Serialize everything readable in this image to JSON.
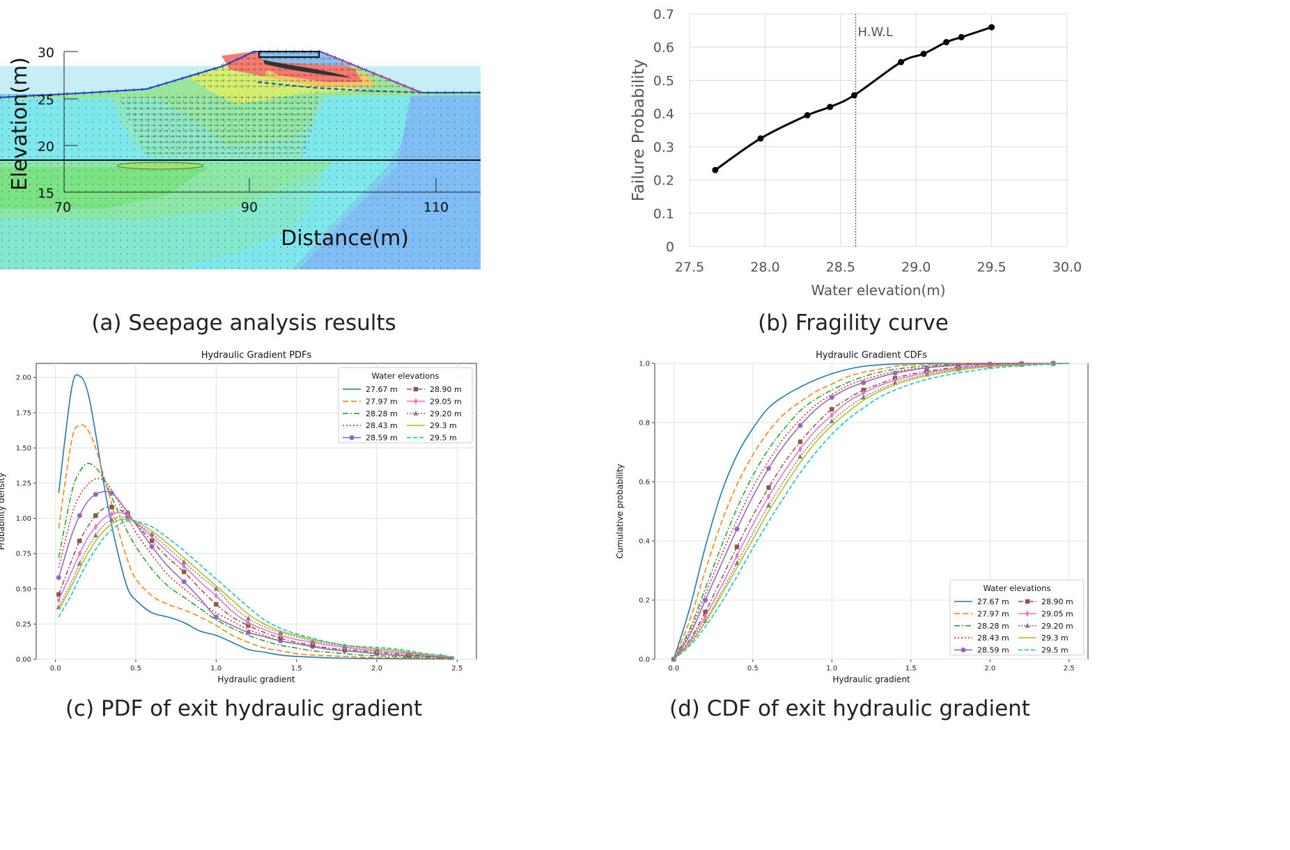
{
  "captions": {
    "a": "(a) Seepage analysis results",
    "b": "(b) Fragility curve",
    "c": "(c) PDF of exit hydraulic gradient",
    "d": "(d) CDF of exit hydraulic gradient"
  },
  "seepage": {
    "ylabel": "Elevation(m)",
    "xlabel": "Distance(m)",
    "yticks": [
      "30",
      "25",
      "20",
      "15"
    ],
    "xticks": [
      "70",
      "90",
      "110"
    ]
  },
  "series_names": [
    "27.67 m",
    "27.97 m",
    "28.28 m",
    "28.43 m",
    "28.59 m",
    "28.90 m",
    "29.05 m",
    "29.20 m",
    "29.3 m",
    "29.5 m"
  ],
  "series_colors": [
    "#1f77b4",
    "#ff7f0e",
    "#2ca02c",
    "#d62728",
    "#9467bd",
    "#8c564b",
    "#e377c2",
    "#7f7f7f",
    "#bcbd22",
    "#17becf"
  ],
  "chart_data": [
    {
      "type": "line",
      "title": "",
      "xlabel": "Water elevation(m)",
      "ylabel": "Failure Probability",
      "xlim": [
        27.5,
        30.0
      ],
      "ylim": [
        0,
        0.7
      ],
      "xticks": [
        "27.5",
        "28.0",
        "28.5",
        "29.0",
        "29.5",
        "30.0"
      ],
      "yticks": [
        "0",
        "0.1",
        "0.2",
        "0.3",
        "0.4",
        "0.5",
        "0.6",
        "0.7"
      ],
      "annotation": {
        "text": "H.W.L",
        "x": 28.6
      },
      "x": [
        27.67,
        27.97,
        28.28,
        28.43,
        28.59,
        28.9,
        29.05,
        29.2,
        29.3,
        29.5
      ],
      "y": [
        0.23,
        0.325,
        0.395,
        0.42,
        0.455,
        0.555,
        0.58,
        0.615,
        0.63,
        0.66
      ],
      "grid": true
    },
    {
      "type": "line",
      "title": "Hydraulic Gradient PDFs",
      "xlabel": "Hydraulic gradient",
      "ylabel": "Probability density",
      "xlim": [
        -0.12,
        2.62
      ],
      "ylim": [
        0,
        2.1
      ],
      "xticks": [
        "0.0",
        "0.5",
        "1.0",
        "1.5",
        "2.0",
        "2.5"
      ],
      "yticks": [
        "0.00",
        "0.25",
        "0.50",
        "0.75",
        "1.00",
        "1.25",
        "1.50",
        "1.75",
        "2.00"
      ],
      "legend_title": "Water elevations",
      "legend_position": "top-right",
      "grid": true,
      "x": [
        0.02,
        0.1,
        0.15,
        0.2,
        0.25,
        0.3,
        0.35,
        0.4,
        0.45,
        0.5,
        0.6,
        0.7,
        0.8,
        0.9,
        1.0,
        1.1,
        1.2,
        1.3,
        1.4,
        1.5,
        1.6,
        1.7,
        1.8,
        1.9,
        2.0,
        2.1,
        2.2,
        2.3,
        2.4,
        2.48
      ],
      "series": [
        {
          "name": "27.67 m",
          "values": [
            1.18,
            1.92,
            2.01,
            1.9,
            1.6,
            1.25,
            0.95,
            0.7,
            0.5,
            0.42,
            0.33,
            0.3,
            0.26,
            0.2,
            0.17,
            0.12,
            0.07,
            0.05,
            0.03,
            0.02,
            0.015,
            0.01,
            0.008,
            0.006,
            0.005,
            0.004,
            0.003,
            0.002,
            0.002,
            0.001
          ]
        },
        {
          "name": "27.97 m",
          "values": [
            0.93,
            1.55,
            1.66,
            1.63,
            1.5,
            1.3,
            1.1,
            0.88,
            0.7,
            0.57,
            0.45,
            0.39,
            0.35,
            0.3,
            0.24,
            0.17,
            0.12,
            0.08,
            0.06,
            0.04,
            0.03,
            0.025,
            0.02,
            0.015,
            0.012,
            0.01,
            0.008,
            0.006,
            0.004,
            0.003
          ]
        },
        {
          "name": "28.28 m",
          "values": [
            0.72,
            1.18,
            1.33,
            1.39,
            1.36,
            1.28,
            1.15,
            1.02,
            0.9,
            0.8,
            0.64,
            0.52,
            0.44,
            0.36,
            0.28,
            0.22,
            0.17,
            0.13,
            0.1,
            0.08,
            0.06,
            0.05,
            0.04,
            0.03,
            0.025,
            0.02,
            0.015,
            0.01,
            0.007,
            0.005
          ]
        },
        {
          "name": "28.43 m",
          "values": [
            0.65,
            1.02,
            1.16,
            1.24,
            1.28,
            1.27,
            1.2,
            1.1,
            1.0,
            0.9,
            0.74,
            0.6,
            0.5,
            0.41,
            0.33,
            0.27,
            0.21,
            0.17,
            0.13,
            0.11,
            0.09,
            0.07,
            0.06,
            0.05,
            0.04,
            0.03,
            0.025,
            0.02,
            0.015,
            0.01
          ]
        },
        {
          "name": "28.59 m",
          "values": [
            0.58,
            0.88,
            1.02,
            1.12,
            1.17,
            1.19,
            1.18,
            1.12,
            1.04,
            0.96,
            0.8,
            0.66,
            0.55,
            0.43,
            0.3,
            0.24,
            0.19,
            0.16,
            0.13,
            0.11,
            0.09,
            0.07,
            0.06,
            0.05,
            0.04,
            0.03,
            0.025,
            0.02,
            0.015,
            0.01
          ]
        },
        {
          "name": "28.90 m",
          "values": [
            0.46,
            0.7,
            0.84,
            0.94,
            1.02,
            1.07,
            1.08,
            1.06,
            1.02,
            0.96,
            0.84,
            0.72,
            0.62,
            0.5,
            0.39,
            0.3,
            0.24,
            0.19,
            0.15,
            0.12,
            0.1,
            0.08,
            0.07,
            0.06,
            0.05,
            0.04,
            0.03,
            0.022,
            0.015,
            0.01
          ]
        },
        {
          "name": "29.05 m",
          "values": [
            0.42,
            0.62,
            0.75,
            0.86,
            0.94,
            1.0,
            1.03,
            1.04,
            1.02,
            0.97,
            0.87,
            0.76,
            0.66,
            0.55,
            0.45,
            0.34,
            0.26,
            0.21,
            0.17,
            0.14,
            0.12,
            0.1,
            0.085,
            0.07,
            0.06,
            0.05,
            0.04,
            0.03,
            0.02,
            0.012
          ]
        },
        {
          "name": "29.20 m",
          "values": [
            0.37,
            0.55,
            0.68,
            0.79,
            0.88,
            0.95,
            0.99,
            1.01,
            1.0,
            0.97,
            0.89,
            0.79,
            0.69,
            0.59,
            0.5,
            0.38,
            0.29,
            0.23,
            0.19,
            0.16,
            0.13,
            0.11,
            0.095,
            0.08,
            0.07,
            0.06,
            0.045,
            0.033,
            0.022,
            0.014
          ]
        },
        {
          "name": "29.3 m",
          "values": [
            0.35,
            0.52,
            0.64,
            0.75,
            0.84,
            0.91,
            0.96,
            0.99,
            0.99,
            0.98,
            0.91,
            0.82,
            0.72,
            0.62,
            0.52,
            0.42,
            0.32,
            0.25,
            0.2,
            0.17,
            0.14,
            0.12,
            0.1,
            0.085,
            0.075,
            0.065,
            0.05,
            0.036,
            0.024,
            0.015
          ]
        },
        {
          "name": "29.5 m",
          "values": [
            0.3,
            0.46,
            0.58,
            0.69,
            0.78,
            0.86,
            0.92,
            0.96,
            0.98,
            0.98,
            0.94,
            0.86,
            0.77,
            0.67,
            0.57,
            0.47,
            0.37,
            0.28,
            0.22,
            0.18,
            0.15,
            0.12,
            0.1,
            0.09,
            0.085,
            0.075,
            0.06,
            0.04,
            0.028,
            0.016
          ]
        }
      ]
    },
    {
      "type": "line",
      "title": "Hydraulic Gradient CDFs",
      "xlabel": "Hydraulic gradient",
      "ylabel": "Cumulative probability",
      "xlim": [
        -0.12,
        2.62
      ],
      "ylim": [
        0,
        1.0
      ],
      "xticks": [
        "0.0",
        "0.5",
        "1.0",
        "1.5",
        "2.0",
        "2.5"
      ],
      "yticks": [
        "0.0",
        "0.2",
        "0.4",
        "0.6",
        "0.8",
        "1.0"
      ],
      "legend_title": "Water elevations",
      "legend_position": "bottom-right",
      "grid": true,
      "x": [
        0.0,
        0.1,
        0.2,
        0.3,
        0.4,
        0.5,
        0.6,
        0.7,
        0.8,
        0.9,
        1.0,
        1.1,
        1.2,
        1.3,
        1.4,
        1.5,
        1.6,
        1.7,
        1.8,
        1.9,
        2.0,
        2.1,
        2.2,
        2.3,
        2.4,
        2.5
      ],
      "series": [
        {
          "name": "27.67 m",
          "values": [
            0.0,
            0.17,
            0.38,
            0.56,
            0.69,
            0.78,
            0.85,
            0.89,
            0.92,
            0.945,
            0.965,
            0.98,
            0.99,
            0.995,
            0.998,
            0.999,
            1.0,
            1.0,
            1.0,
            1.0,
            1.0,
            1.0,
            1.0,
            1.0,
            1.0,
            1.0
          ]
        },
        {
          "name": "27.97 m",
          "values": [
            0.0,
            0.13,
            0.3,
            0.46,
            0.59,
            0.69,
            0.77,
            0.83,
            0.87,
            0.905,
            0.93,
            0.955,
            0.97,
            0.98,
            0.99,
            0.995,
            0.997,
            0.998,
            0.999,
            1.0,
            1.0,
            1.0,
            1.0,
            1.0,
            1.0,
            1.0
          ]
        },
        {
          "name": "28.28 m",
          "values": [
            0.0,
            0.1,
            0.24,
            0.38,
            0.51,
            0.62,
            0.71,
            0.78,
            0.84,
            0.88,
            0.91,
            0.935,
            0.955,
            0.97,
            0.98,
            0.987,
            0.992,
            0.995,
            0.997,
            0.998,
            0.999,
            1.0,
            1.0,
            1.0,
            1.0,
            1.0
          ]
        },
        {
          "name": "28.43 m",
          "values": [
            0.0,
            0.09,
            0.22,
            0.35,
            0.47,
            0.58,
            0.67,
            0.75,
            0.81,
            0.86,
            0.895,
            0.925,
            0.945,
            0.96,
            0.972,
            0.98,
            0.987,
            0.992,
            0.995,
            0.997,
            0.998,
            0.999,
            1.0,
            1.0,
            1.0,
            1.0
          ]
        },
        {
          "name": "28.59 m",
          "values": [
            0.0,
            0.08,
            0.2,
            0.32,
            0.44,
            0.55,
            0.645,
            0.725,
            0.79,
            0.845,
            0.885,
            0.915,
            0.935,
            0.953,
            0.967,
            0.977,
            0.985,
            0.99,
            0.994,
            0.996,
            0.998,
            0.999,
            1.0,
            1.0,
            1.0,
            1.0
          ]
        },
        {
          "name": "28.90 m",
          "values": [
            0.0,
            0.065,
            0.16,
            0.27,
            0.38,
            0.485,
            0.58,
            0.665,
            0.735,
            0.795,
            0.845,
            0.88,
            0.91,
            0.93,
            0.95,
            0.963,
            0.973,
            0.981,
            0.987,
            0.991,
            0.994,
            0.996,
            0.998,
            0.999,
            1.0,
            1.0
          ]
        },
        {
          "name": "29.05 m",
          "values": [
            0.0,
            0.06,
            0.145,
            0.245,
            0.35,
            0.455,
            0.55,
            0.635,
            0.71,
            0.775,
            0.825,
            0.87,
            0.9,
            0.924,
            0.943,
            0.957,
            0.968,
            0.977,
            0.984,
            0.989,
            0.993,
            0.995,
            0.997,
            0.999,
            1.0,
            1.0
          ]
        },
        {
          "name": "29.20 m",
          "values": [
            0.0,
            0.055,
            0.13,
            0.225,
            0.325,
            0.425,
            0.52,
            0.605,
            0.685,
            0.75,
            0.805,
            0.85,
            0.885,
            0.912,
            0.934,
            0.95,
            0.962,
            0.972,
            0.98,
            0.986,
            0.99,
            0.993,
            0.996,
            0.998,
            0.999,
            1.0
          ]
        },
        {
          "name": "29.3 m",
          "values": [
            0.0,
            0.05,
            0.125,
            0.215,
            0.31,
            0.405,
            0.5,
            0.585,
            0.665,
            0.735,
            0.79,
            0.835,
            0.875,
            0.905,
            0.928,
            0.945,
            0.958,
            0.968,
            0.977,
            0.984,
            0.989,
            0.992,
            0.995,
            0.997,
            0.999,
            1.0
          ]
        },
        {
          "name": "29.5 m",
          "values": [
            0.0,
            0.045,
            0.11,
            0.19,
            0.28,
            0.375,
            0.465,
            0.55,
            0.63,
            0.7,
            0.76,
            0.81,
            0.85,
            0.885,
            0.91,
            0.93,
            0.946,
            0.958,
            0.968,
            0.976,
            0.983,
            0.988,
            0.992,
            0.995,
            0.998,
            1.0
          ]
        }
      ]
    }
  ]
}
